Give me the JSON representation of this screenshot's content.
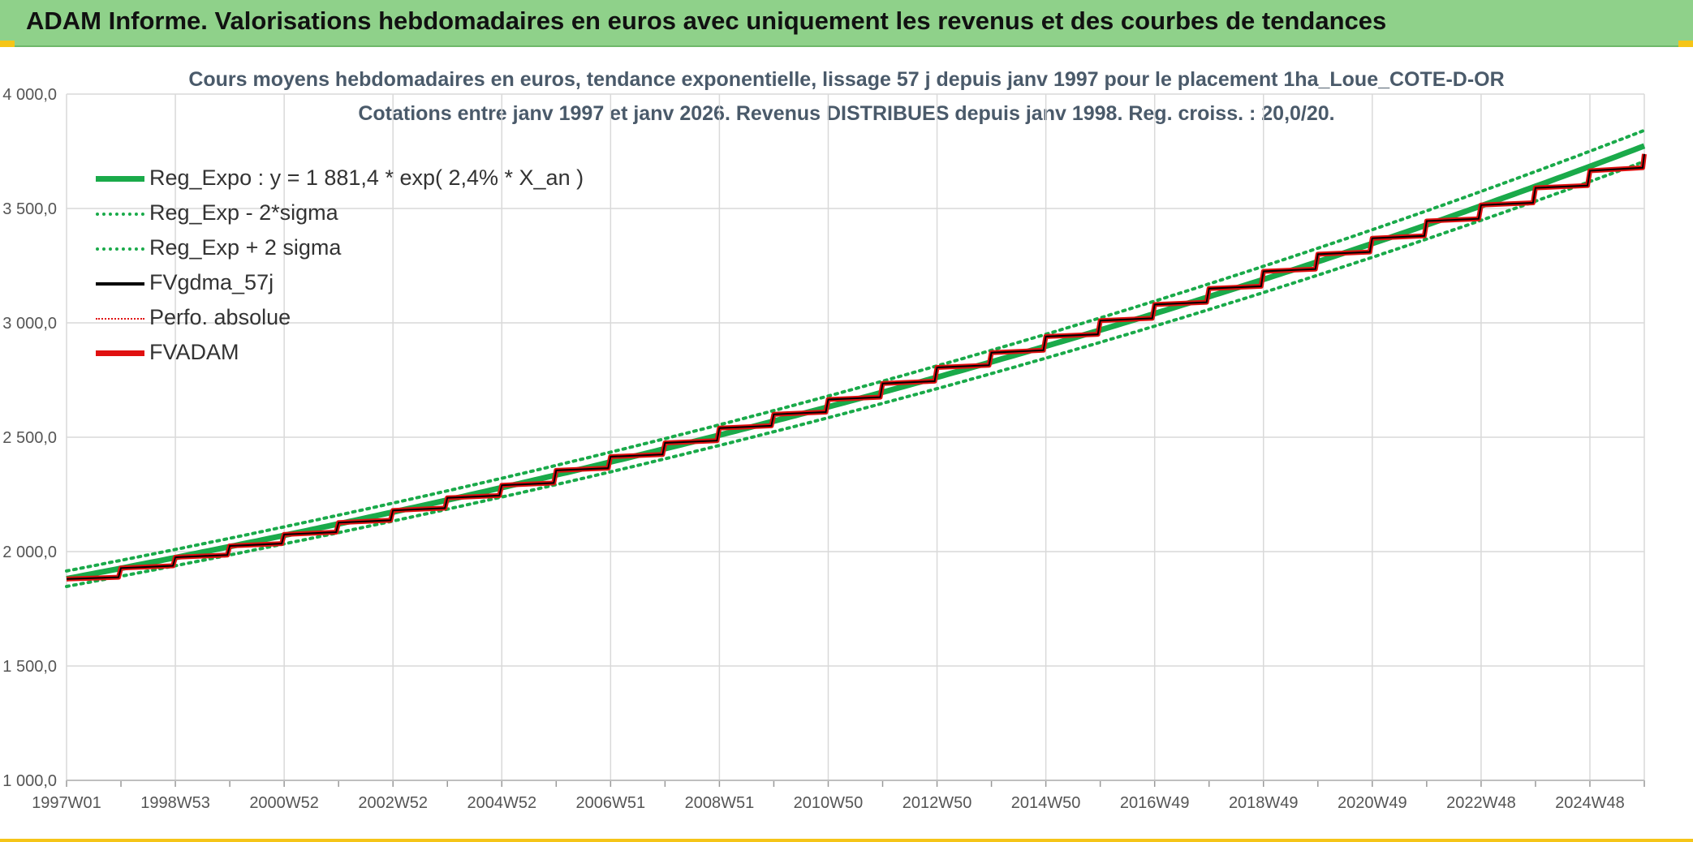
{
  "banner": {
    "title": "ADAM Informe. Valorisations hebdomadaires en euros avec uniquement les revenus et des courbes de tendances"
  },
  "chart_data": {
    "type": "line",
    "title": "Cours moyens hebdomadaires en euros, tendance exponentielle, lissage 57 j depuis janv 1997 pour le placement 1ha_Loue_COTE-D-OR",
    "subtitle": "Cotations entre janv 1997 et janv 2026. Revenus DISTRIBUES depuis janv 1998. Reg. croiss. : 20,0/20.",
    "x_ticks": [
      "1997W01",
      "1998W53",
      "2000W52",
      "2002W52",
      "2004W52",
      "2006W51",
      "2008W51",
      "2010W50",
      "2012W50",
      "2014W50",
      "2016W49",
      "2018W49",
      "2020W49",
      "2022W48",
      "2024W48"
    ],
    "y_ticks": [
      "1 000,0",
      "1 500,0",
      "2 000,0",
      "2 500,0",
      "3 000,0",
      "3 500,0",
      "4 000,0"
    ],
    "ylim": [
      1000,
      4000
    ],
    "xlim": [
      1997.0,
      2026.0
    ],
    "grid": true,
    "legend_position": "top-left",
    "trend": {
      "base": 1881.4,
      "rate": 0.024,
      "sigma_band": 0.018
    },
    "series": [
      {
        "name": "Reg_Expo : y = 1 881,4 * exp( 2,4% *  X_an )",
        "color": "#1aaa4a",
        "style": "solid-thick"
      },
      {
        "name": "Reg_Exp - 2*sigma",
        "color": "#1aaa4a",
        "style": "dotted"
      },
      {
        "name": "Reg_Exp + 2 sigma",
        "color": "#1aaa4a",
        "style": "dotted"
      },
      {
        "name": "FVgdma_57j",
        "color": "#000000",
        "style": "solid"
      },
      {
        "name": "Perfo. absolue",
        "color": "#e01010",
        "style": "dotted-thin"
      },
      {
        "name": "FVADAM",
        "color": "#e01010",
        "style": "solid-thick"
      }
    ],
    "steps": [
      {
        "year": 1997,
        "start": 1880,
        "end": 1888
      },
      {
        "year": 1998,
        "start": 1928,
        "end": 1938
      },
      {
        "year": 1999,
        "start": 1975,
        "end": 1985
      },
      {
        "year": 2000,
        "start": 2025,
        "end": 2035
      },
      {
        "year": 2001,
        "start": 2075,
        "end": 2085
      },
      {
        "year": 2002,
        "start": 2127,
        "end": 2137
      },
      {
        "year": 2003,
        "start": 2180,
        "end": 2190
      },
      {
        "year": 2004,
        "start": 2235,
        "end": 2245
      },
      {
        "year": 2005,
        "start": 2290,
        "end": 2300
      },
      {
        "year": 2006,
        "start": 2355,
        "end": 2365
      },
      {
        "year": 2007,
        "start": 2415,
        "end": 2425
      },
      {
        "year": 2008,
        "start": 2475,
        "end": 2485
      },
      {
        "year": 2009,
        "start": 2540,
        "end": 2550
      },
      {
        "year": 2010,
        "start": 2600,
        "end": 2610
      },
      {
        "year": 2011,
        "start": 2665,
        "end": 2675
      },
      {
        "year": 2012,
        "start": 2735,
        "end": 2745
      },
      {
        "year": 2013,
        "start": 2805,
        "end": 2815
      },
      {
        "year": 2014,
        "start": 2870,
        "end": 2880
      },
      {
        "year": 2015,
        "start": 2940,
        "end": 2950
      },
      {
        "year": 2016,
        "start": 3010,
        "end": 3020
      },
      {
        "year": 2017,
        "start": 3080,
        "end": 3090
      },
      {
        "year": 2018,
        "start": 3150,
        "end": 3160
      },
      {
        "year": 2019,
        "start": 3225,
        "end": 3235
      },
      {
        "year": 2020,
        "start": 3300,
        "end": 3310
      },
      {
        "year": 2021,
        "start": 3370,
        "end": 3380
      },
      {
        "year": 2022,
        "start": 3445,
        "end": 3455
      },
      {
        "year": 2023,
        "start": 3515,
        "end": 3525
      },
      {
        "year": 2024,
        "start": 3590,
        "end": 3600
      },
      {
        "year": 2025,
        "start": 3665,
        "end": 3678
      }
    ],
    "end_value": 3738
  }
}
